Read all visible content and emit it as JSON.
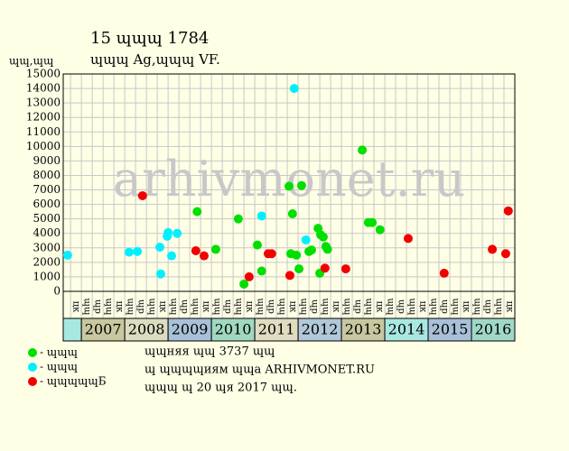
{
  "chart_data": {
    "type": "scatter",
    "title": "15 ɰɰɰ 1784",
    "subtitle": "ɰɰɰ Ag,ɰɰɰ VF.",
    "y_label": "ɰɰ,ɰɰ",
    "watermark": "arhivmonet.ru",
    "xlim": [
      2006.58,
      2017.0
    ],
    "ylim": [
      0,
      15000
    ],
    "yticks": [
      0,
      1000,
      2000,
      3000,
      4000,
      5000,
      6000,
      7000,
      8000,
      9000,
      10000,
      11000,
      12000,
      13000,
      14000,
      15000
    ],
    "grid": true,
    "years": [
      null,
      2007,
      2008,
      2009,
      2010,
      2011,
      2012,
      2013,
      2014,
      2015,
      2016
    ],
    "year_colors": [
      "#a8e8e0",
      "#c8c8a0",
      "#dcdcc0",
      "#a8c0d8",
      "#a0d8c0",
      "#e0dcc0",
      "#b0c8d8",
      "#c8c8a0",
      "#a8e8e0",
      "#a8c0d8",
      "#a0d8c8"
    ],
    "quarter_labels": [
      "цк",
      "ɰɰ",
      "ɰр",
      "ɰɰ",
      "цк",
      "ɰɰ",
      "ɰр",
      "ɰɰ",
      "цк",
      "ɰɰ",
      "ɰр",
      "ɰɰ",
      "цк",
      "ɰɰ",
      "ɰр",
      "ɰɰ",
      "цк",
      "ɰɰ",
      "ɰр",
      "ɰɰ",
      "цк",
      "ɰɰ",
      "ɰр",
      "ɰɰ",
      "цк",
      "ɰɰ",
      "ɰр",
      "ɰɰ",
      "цк",
      "ɰɰ",
      "ɰр",
      "ɰɰ",
      "цк",
      "ɰɰ",
      "ɰр",
      "ɰɰ",
      "цк",
      "ɰɰ",
      "ɰр",
      "ɰɰ",
      "цк"
    ],
    "series": [
      {
        "name": "- ɰɰɰ",
        "color": "#00e000",
        "x": [
          2009.67,
          2010.1,
          2010.62,
          2010.75,
          2011.06,
          2011.16,
          2011.79,
          2012.08,
          2011.87,
          2011.83,
          2011.96,
          2012.02,
          2012.25,
          2012.31,
          2012.46,
          2012.52,
          2012.58,
          2012.64,
          2012.68,
          2012.5,
          2013.48,
          2013.62,
          2013.71,
          2013.89
        ],
        "values": [
          5500,
          2900,
          5000,
          500,
          3200,
          1400,
          7250,
          7300,
          5350,
          2600,
          2500,
          1550,
          2750,
          2850,
          4350,
          3900,
          3750,
          3100,
          2900,
          1250,
          9750,
          4750,
          4750,
          4250
        ]
      },
      {
        "name": "- ɰɰɰ",
        "color": "#00f0ff",
        "x": [
          2006.68,
          2008.1,
          2008.29,
          2008.81,
          2008.83,
          2008.98,
          2009.0,
          2009.08,
          2009.21,
          2011.16,
          2011.91,
          2012.18
        ],
        "values": [
          2500,
          2700,
          2750,
          3050,
          1200,
          3800,
          4050,
          2450,
          4000,
          5200,
          14000,
          3550
        ]
      },
      {
        "name": "- ɰɰɰɰɰБ",
        "color": "#f00000",
        "x": [
          2008.41,
          2009.64,
          2009.83,
          2010.87,
          2011.31,
          2011.39,
          2011.81,
          2012.62,
          2013.1,
          2014.54,
          2015.37,
          2016.48,
          2016.79,
          2016.85
        ],
        "values": [
          6600,
          2800,
          2450,
          1000,
          2600,
          2600,
          1100,
          1600,
          1550,
          3650,
          1250,
          2900,
          2600,
          5550
        ]
      }
    ],
    "footer": [
      "ɰɰняя ɰɰ 3737 ɰɰ",
      "ɰ ɰɰɰɰиям ɰɰа ARHIVMONET.RU",
      "ɰɰɰ ɰ 20 ɰя 2017 ɰɰ."
    ]
  }
}
